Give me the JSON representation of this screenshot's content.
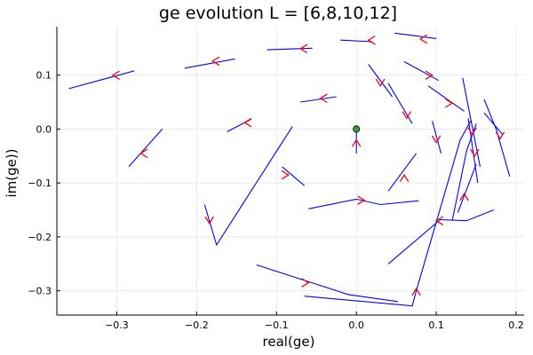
{
  "chart_data": {
    "type": "line",
    "title": "ge evolution L = [6,8,10,12]",
    "xlabel": "real(ge)",
    "ylabel": "im(ge))",
    "xlim": [
      -0.375,
      0.21
    ],
    "ylim": [
      -0.345,
      0.19
    ],
    "grid": true,
    "legend": "none",
    "x_ticks": [
      {
        "value": -0.3,
        "label": "−0.3"
      },
      {
        "value": -0.2,
        "label": "−0.2"
      },
      {
        "value": -0.1,
        "label": "−0.1"
      },
      {
        "value": 0.0,
        "label": "0.0"
      },
      {
        "value": 0.1,
        "label": "0.1"
      },
      {
        "value": 0.2,
        "label": "0.2"
      }
    ],
    "y_ticks": [
      {
        "value": 0.1,
        "label": "0.1"
      },
      {
        "value": 0.0,
        "label": "0.0"
      },
      {
        "value": -0.1,
        "label": "−0.1"
      },
      {
        "value": -0.2,
        "label": "−0.2"
      },
      {
        "value": -0.3,
        "label": "−0.3"
      }
    ],
    "line_color": "#0000ff",
    "arrow_color": "#ff0000",
    "marker_color": "#3a9b3a",
    "center_point": [
      0.0,
      0.0
    ],
    "paths": [
      {
        "points": [
          [
            -0.36,
            0.075
          ],
          [
            -0.278,
            0.108
          ]
        ],
        "arrow": {
          "at": [
            -0.305,
            0.1
          ],
          "dir": "left"
        }
      },
      {
        "points": [
          [
            -0.215,
            0.113
          ],
          [
            -0.152,
            0.13
          ]
        ],
        "arrow": {
          "at": [
            -0.18,
            0.126
          ],
          "dir": "left"
        }
      },
      {
        "points": [
          [
            -0.112,
            0.147
          ],
          [
            -0.055,
            0.15
          ]
        ],
        "arrow": {
          "at": [
            -0.07,
            0.149
          ],
          "dir": "left"
        }
      },
      {
        "points": [
          [
            -0.07,
            0.05
          ],
          [
            -0.025,
            0.06
          ]
        ],
        "arrow": {
          "at": [
            -0.045,
            0.057
          ],
          "dir": "left"
        }
      },
      {
        "points": [
          [
            -0.162,
            -0.005
          ],
          [
            -0.132,
            0.018
          ]
        ],
        "arrow": {
          "at": [
            -0.14,
            0.012
          ],
          "dir": "left"
        }
      },
      {
        "points": [
          [
            -0.285,
            -0.07
          ],
          [
            -0.243,
            0.0
          ]
        ],
        "arrow": {
          "at": [
            -0.27,
            -0.045
          ],
          "dir": "left"
        }
      },
      {
        "points": [
          [
            -0.093,
            -0.07
          ],
          [
            -0.065,
            -0.105
          ]
        ],
        "arrow": {
          "at": [
            -0.085,
            -0.085
          ],
          "dir": "right"
        }
      },
      {
        "points": [
          [
            -0.19,
            -0.14
          ],
          [
            -0.175,
            -0.215
          ],
          [
            -0.08,
            0.005
          ]
        ],
        "arrow": {
          "at": [
            -0.184,
            -0.175
          ],
          "dir": "down"
        }
      },
      {
        "points": [
          [
            0.0,
            -0.045
          ],
          [
            0.0,
            -0.02
          ],
          [
            0.0,
            0.0
          ]
        ],
        "arrow": {
          "at": [
            0.0,
            -0.02
          ],
          "dir": "up"
        }
      },
      {
        "points": [
          [
            -0.06,
            -0.148
          ],
          [
            0.0,
            -0.13
          ],
          [
            0.03,
            -0.14
          ],
          [
            0.078,
            -0.133
          ]
        ],
        "arrow": {
          "at": [
            0.01,
            -0.132
          ],
          "dir": "right"
        }
      },
      {
        "points": [
          [
            -0.125,
            -0.252
          ],
          [
            -0.01,
            -0.307
          ],
          [
            0.052,
            -0.32
          ]
        ],
        "arrow": {
          "at": [
            -0.06,
            -0.285
          ],
          "dir": "right"
        }
      },
      {
        "points": [
          [
            -0.065,
            -0.31
          ],
          [
            0.07,
            -0.328
          ],
          [
            0.075,
            -0.3
          ],
          [
            0.13,
            -0.02
          ],
          [
            0.143,
            0.015
          ]
        ],
        "arrow": {
          "at": [
            0.075,
            -0.296
          ],
          "dir": "up"
        }
      },
      {
        "points": [
          [
            -0.02,
            0.165
          ],
          [
            0.02,
            0.162
          ]
        ],
        "arrow": {
          "at": [
            0.015,
            0.165
          ],
          "dir": "left"
        }
      },
      {
        "points": [
          [
            0.048,
            0.178
          ],
          [
            0.1,
            0.168
          ]
        ],
        "arrow": {
          "at": [
            0.08,
            0.167
          ],
          "dir": "left"
        }
      },
      {
        "points": [
          [
            0.015,
            0.12
          ],
          [
            0.045,
            0.06
          ]
        ],
        "arrow": {
          "at": [
            0.03,
            0.08
          ],
          "dir": "down"
        }
      },
      {
        "points": [
          [
            0.04,
            0.085
          ],
          [
            0.07,
            0.01
          ]
        ],
        "arrow": {
          "at": [
            0.063,
            0.02
          ],
          "dir": "down"
        }
      },
      {
        "points": [
          [
            0.06,
            0.125
          ],
          [
            0.103,
            0.09
          ]
        ],
        "arrow": {
          "at": [
            0.095,
            0.1
          ],
          "dir": "right"
        }
      },
      {
        "points": [
          [
            0.09,
            0.08
          ],
          [
            0.135,
            0.033
          ]
        ],
        "arrow": {
          "at": [
            0.12,
            0.048
          ],
          "dir": "right"
        }
      },
      {
        "points": [
          [
            0.095,
            0.015
          ],
          [
            0.106,
            -0.045
          ]
        ],
        "arrow": {
          "at": [
            0.1,
            -0.025
          ],
          "dir": "down"
        }
      },
      {
        "points": [
          [
            0.133,
            0.095
          ],
          [
            0.155,
            -0.07
          ]
        ],
        "arrow": {
          "at": [
            0.148,
            -0.05
          ],
          "dir": "down"
        }
      },
      {
        "points": [
          [
            0.16,
            0.03
          ],
          [
            0.183,
            -0.01
          ]
        ],
        "arrow": {
          "at": [
            0.18,
            -0.018
          ],
          "dir": "down"
        }
      },
      {
        "points": [
          [
            0.16,
            0.055
          ],
          [
            0.175,
            0.0
          ],
          [
            0.192,
            -0.088
          ]
        ],
        "arrow": null
      },
      {
        "points": [
          [
            0.04,
            -0.115
          ],
          [
            0.075,
            -0.045
          ]
        ],
        "arrow": {
          "at": [
            0.06,
            -0.085
          ],
          "dir": "up"
        }
      },
      {
        "points": [
          [
            0.14,
            0.02
          ],
          [
            0.152,
            -0.1
          ]
        ],
        "arrow": {
          "at": [
            0.145,
            -0.01
          ],
          "dir": "down"
        }
      },
      {
        "points": [
          [
            0.127,
            -0.155
          ],
          [
            0.15,
            -0.065
          ]
        ],
        "arrow": {
          "at": [
            0.135,
            -0.12
          ],
          "dir": "up"
        }
      },
      {
        "points": [
          [
            0.04,
            -0.25
          ],
          [
            0.105,
            -0.168
          ],
          [
            0.138,
            -0.17
          ],
          [
            0.172,
            -0.15
          ]
        ],
        "arrow": {
          "at": [
            0.1,
            -0.17
          ],
          "dir": "left"
        }
      },
      {
        "points": [
          [
            0.12,
            -0.17
          ],
          [
            0.138,
            -0.04
          ],
          [
            0.15,
            0.01
          ]
        ],
        "arrow": null
      }
    ]
  }
}
